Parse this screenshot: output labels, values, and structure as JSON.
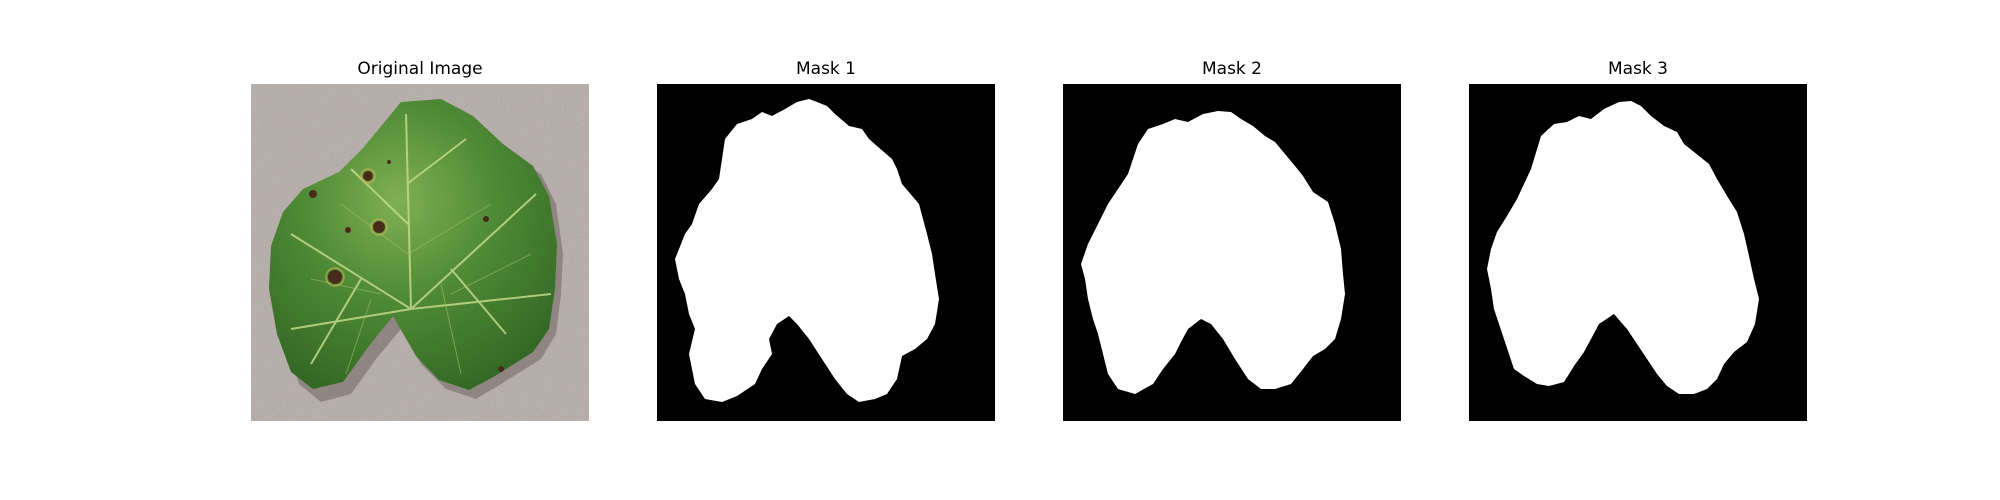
{
  "figure": {
    "panels": [
      {
        "title": "Original Image",
        "kind": "photo"
      },
      {
        "title": "Mask 1",
        "kind": "mask"
      },
      {
        "title": "Mask 2",
        "kind": "mask"
      },
      {
        "title": "Mask 3",
        "kind": "mask"
      }
    ]
  },
  "colors": {
    "background": "#ffffff",
    "mask_background": "#000000",
    "mask_foreground": "#ffffff",
    "concrete": "#b5aba6",
    "leaf_dark": "#2f6322",
    "leaf_mid": "#4f8a35",
    "leaf_light": "#7fb055",
    "vein": "#c4d98a",
    "lesion": "#4a2a1a"
  }
}
